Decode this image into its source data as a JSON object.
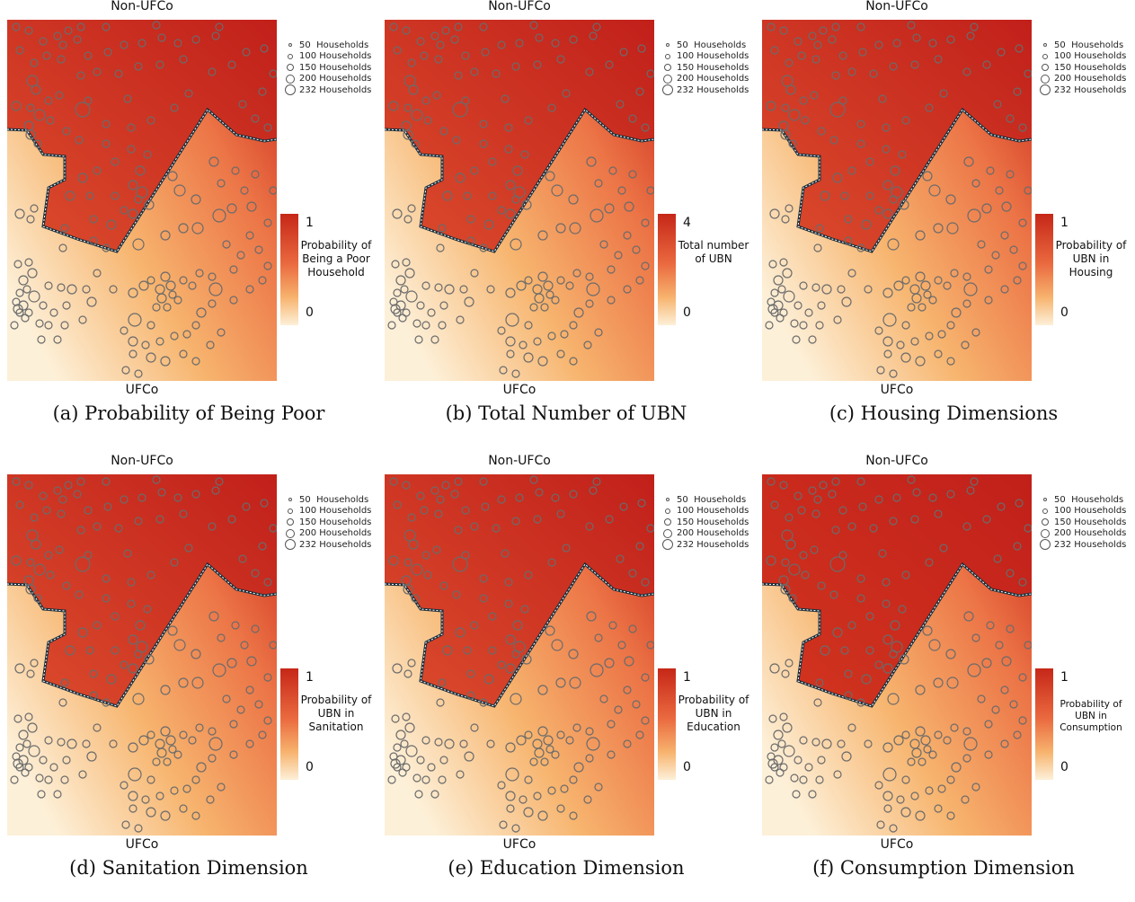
{
  "panels": [
    {
      "caption": "(a) Probability of Being Poor",
      "top_label": "Non-UFCo",
      "bottom_label": "UFCo",
      "cbar_max": "1",
      "cbar_min": "0",
      "cbar_title": "Probability of Being a Poor Household",
      "variant": "a"
    },
    {
      "caption": "(b) Total Number of UBN",
      "top_label": "Non-UFCo",
      "bottom_label": "UFCo",
      "cbar_max": "4",
      "cbar_min": "0",
      "cbar_title": "Total number of UBN",
      "variant": "b"
    },
    {
      "caption": "(c) Housing Dimensions",
      "top_label": "Non-UFCo",
      "bottom_label": "UFCo",
      "cbar_max": "1",
      "cbar_min": "0",
      "cbar_title": "Probability of UBN in Housing",
      "variant": "c"
    },
    {
      "caption": "(d) Sanitation Dimension",
      "top_label": "Non-UFCo",
      "bottom_label": "UFCo",
      "cbar_max": "1",
      "cbar_min": "0",
      "cbar_title": "Probability of UBN in Sanitation",
      "variant": "d"
    },
    {
      "caption": "(e) Education Dimension",
      "top_label": "Non-UFCo",
      "bottom_label": "UFCo",
      "cbar_max": "1",
      "cbar_min": "0",
      "cbar_title": "Probability of UBN in Education",
      "variant": "e"
    },
    {
      "caption": "(f) Consumption Dimension",
      "top_label": "Non-UFCo",
      "bottom_label": "UFCo",
      "cbar_max": "1",
      "cbar_min": "0",
      "cbar_title": "Probability of UBN in Consumption",
      "variant": "f"
    }
  ],
  "legend": [
    "50  Households",
    "100 Households",
    "150 Households",
    "200 Households",
    "232 Households"
  ],
  "colors": {
    "dark_red": "#c62718",
    "orange": "#ea6a3f",
    "light_orange": "#f7b36e",
    "pale": "#fdf0d8",
    "circle_stroke": "#6b6b6b",
    "boundary": "#1f2f3a"
  }
}
